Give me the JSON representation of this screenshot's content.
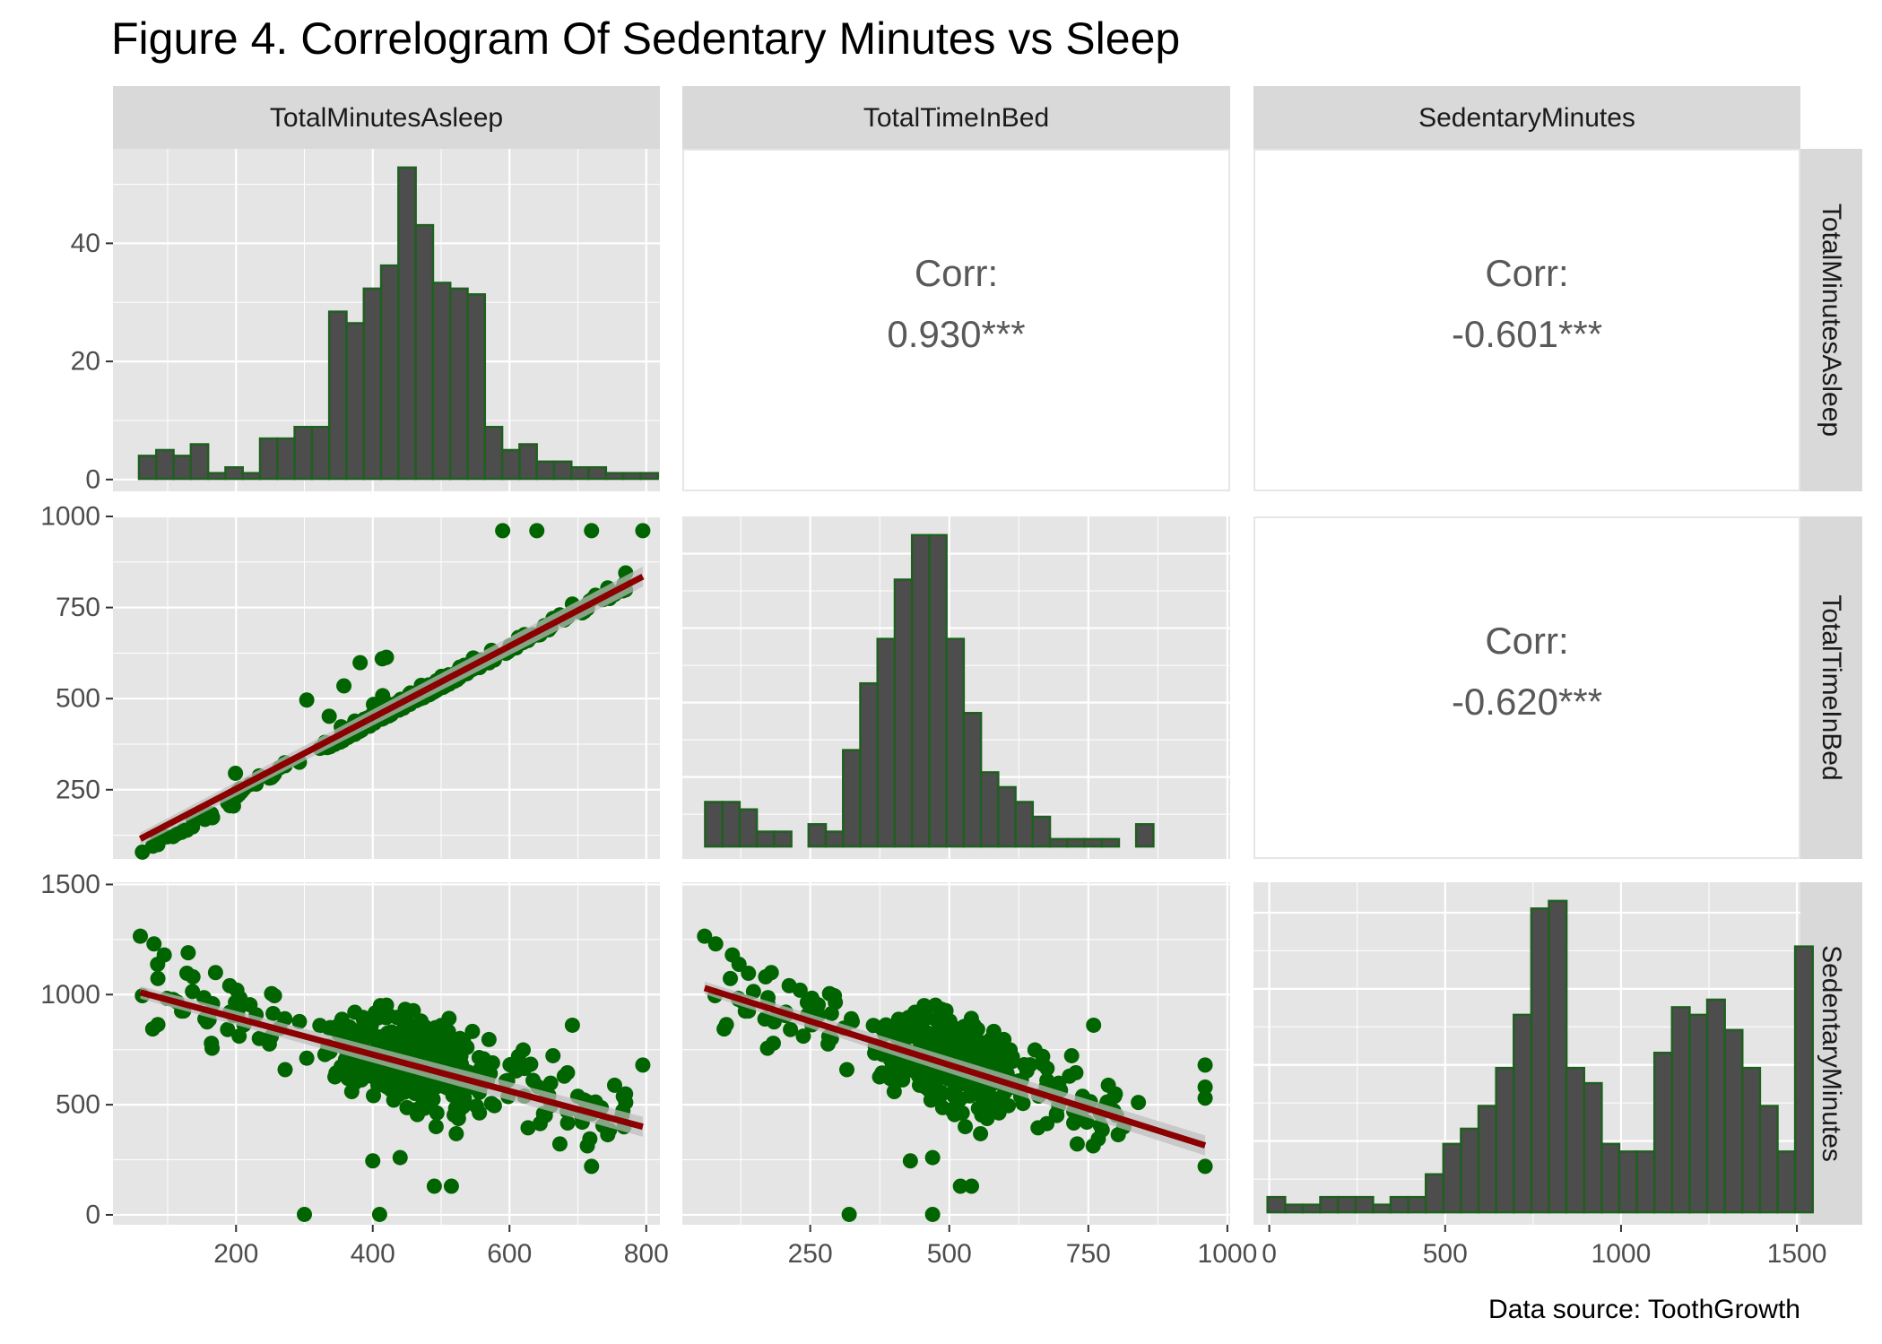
{
  "title": "Figure 4. Correlogram Of Sedentary Minutes vs Sleep",
  "caption": "Data source: ToothGrowth",
  "colors": {
    "panel_bg": "#e5e5e5",
    "grid": "#ffffff",
    "strip_bg": "#d9d9d9",
    "bar_fill": "#4d4d4d",
    "bar_outline": "#1f5f1f",
    "point": "#006400",
    "trend_line": "#8b0000",
    "band": "#bdbdbd"
  },
  "chart_data": {
    "type": "scatter-matrix",
    "variables": [
      "TotalMinutesAsleep",
      "TotalTimeInBed",
      "SedentaryMinutes"
    ],
    "axes": {
      "TotalMinutesAsleep": {
        "lim": [
          20,
          820
        ],
        "ticks": [
          200,
          400,
          600,
          800
        ]
      },
      "TotalTimeInBed": {
        "lim": [
          20,
          1005
        ],
        "ticks": [
          250,
          500,
          750,
          1000
        ],
        "row_ticks": [
          250,
          500,
          750,
          1000
        ]
      },
      "SedentaryMinutes": {
        "lim": [
          -45,
          1510
        ],
        "ticks": [
          0,
          500,
          1000,
          1500
        ]
      }
    },
    "histogram_counts_axis": {
      "lim": [
        -2,
        56
      ],
      "ticks": [
        0,
        20,
        40
      ]
    },
    "correlations": [
      {
        "row": "TotalMinutesAsleep",
        "col": "TotalTimeInBed",
        "label": "Corr:",
        "value": "0.930***"
      },
      {
        "row": "TotalMinutesAsleep",
        "col": "SedentaryMinutes",
        "label": "Corr:",
        "value": "-0.601***"
      },
      {
        "row": "TotalTimeInBed",
        "col": "SedentaryMinutes",
        "label": "Corr:",
        "value": "-0.620***"
      }
    ],
    "histograms": {
      "TotalMinutesAsleep": {
        "bin_start": 58,
        "bin_width": 25.3,
        "counts": [
          4,
          5,
          4,
          6,
          1,
          2,
          1,
          7,
          7,
          9,
          9,
          29,
          27,
          33,
          37,
          54,
          44,
          34,
          33,
          32,
          9,
          5,
          6,
          3,
          3,
          2,
          2,
          1,
          1,
          1
        ]
      },
      "TotalTimeInBed": {
        "bin_start": 61,
        "bin_width": 31.0,
        "counts": [
          6,
          6,
          5,
          2,
          2,
          0,
          3,
          2,
          13,
          22,
          28,
          36,
          42,
          42,
          28,
          18,
          10,
          8,
          6,
          4,
          1,
          1,
          1,
          1,
          0,
          3
        ]
      },
      "SedentaryMinutes": {
        "bin_start": -5,
        "bin_width": 50.0,
        "counts": [
          2,
          1,
          1,
          2,
          2,
          2,
          1,
          2,
          2,
          5,
          9,
          11,
          14,
          19,
          26,
          40,
          41,
          19,
          17,
          9,
          8,
          8,
          21,
          27,
          26,
          28,
          24,
          19,
          14,
          8,
          35
        ]
      }
    },
    "trend_lines": {
      "sleep_vs_bed": {
        "x": [
          60,
          795
        ],
        "y": [
          115,
          835
        ]
      },
      "sleep_vs_sedentary": {
        "x": [
          60,
          795
        ],
        "y": [
          1010,
          400
        ]
      },
      "bed_vs_sedentary": {
        "x": [
          60,
          960
        ],
        "y": [
          1030,
          315
        ]
      }
    },
    "outliers": {
      "sleep_vs_bed": [
        [
          590,
          961
        ],
        [
          640,
          961
        ],
        [
          720,
          961
        ],
        [
          795,
          961
        ],
        [
          770,
          845
        ]
      ],
      "sleep_vs_sedentary": [
        [
          300,
          2
        ],
        [
          410,
          2
        ],
        [
          490,
          130
        ],
        [
          515,
          130
        ],
        [
          720,
          220
        ],
        [
          400,
          245
        ],
        [
          440,
          260
        ],
        [
          60,
          1265
        ],
        [
          80,
          1230
        ],
        [
          95,
          1180
        ],
        [
          130,
          1190
        ],
        [
          170,
          1100
        ],
        [
          770,
          510
        ],
        [
          795,
          680
        ]
      ],
      "bed_vs_sedentary": [
        [
          320,
          2
        ],
        [
          470,
          2
        ],
        [
          520,
          130
        ],
        [
          540,
          130
        ],
        [
          960,
          220
        ],
        [
          430,
          245
        ],
        [
          470,
          260
        ],
        [
          60,
          1265
        ],
        [
          80,
          1230
        ],
        [
          110,
          1180
        ],
        [
          180,
          1100
        ],
        [
          840,
          510
        ],
        [
          960,
          680
        ],
        [
          960,
          580
        ],
        [
          960,
          530
        ]
      ]
    },
    "legend": "none",
    "grid": true
  }
}
